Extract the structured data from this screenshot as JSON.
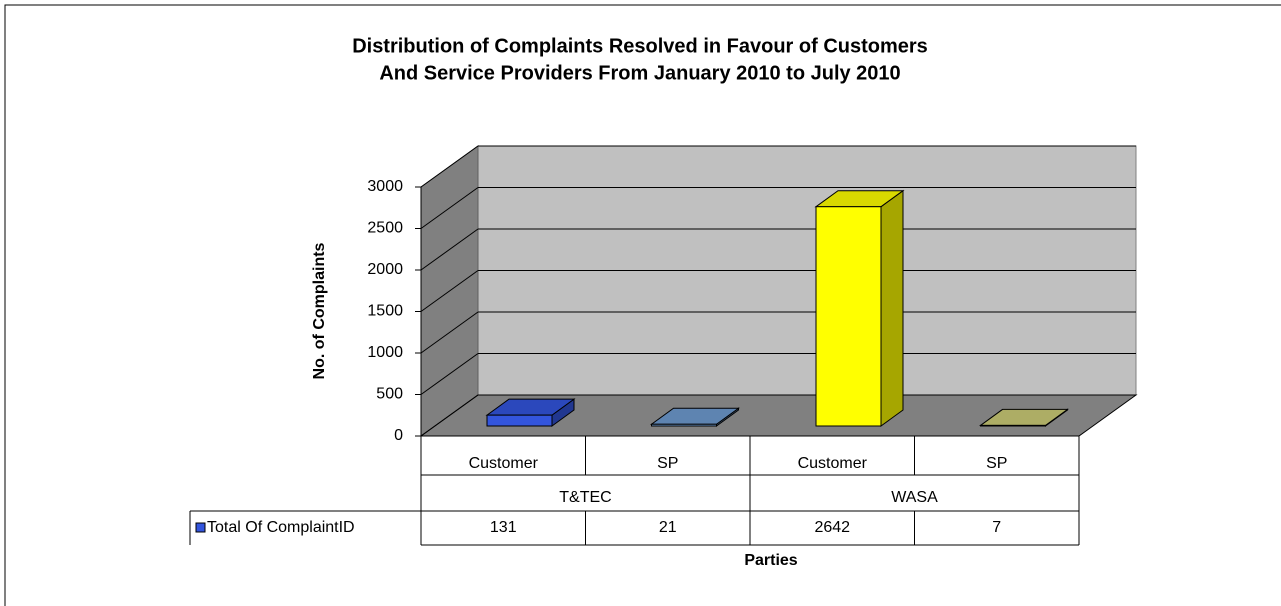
{
  "chart_data": {
    "type": "bar3d",
    "title": [
      "Distribution of Complaints Resolved in Favour of Customers",
      "And Service Providers From January 2010 to July 2010"
    ],
    "y_label": "No. of Complaints",
    "x_label": "Parties",
    "categories": [
      "Customer",
      "SP",
      "Customer",
      "SP"
    ],
    "groups": [
      "T&TEC",
      "WASA"
    ],
    "series": [
      {
        "name": "Total Of ComplaintID",
        "color": "#3355dd",
        "colors": [
          "#3355dd",
          "#6f9bd0",
          "#ffff00",
          "#cccc77"
        ],
        "values": [
          131,
          21,
          2642,
          7
        ]
      }
    ],
    "ylim": [
      0,
      3000
    ],
    "yticks": [
      0,
      500,
      1000,
      1500,
      2000,
      2500,
      3000
    ],
    "grid": true
  }
}
